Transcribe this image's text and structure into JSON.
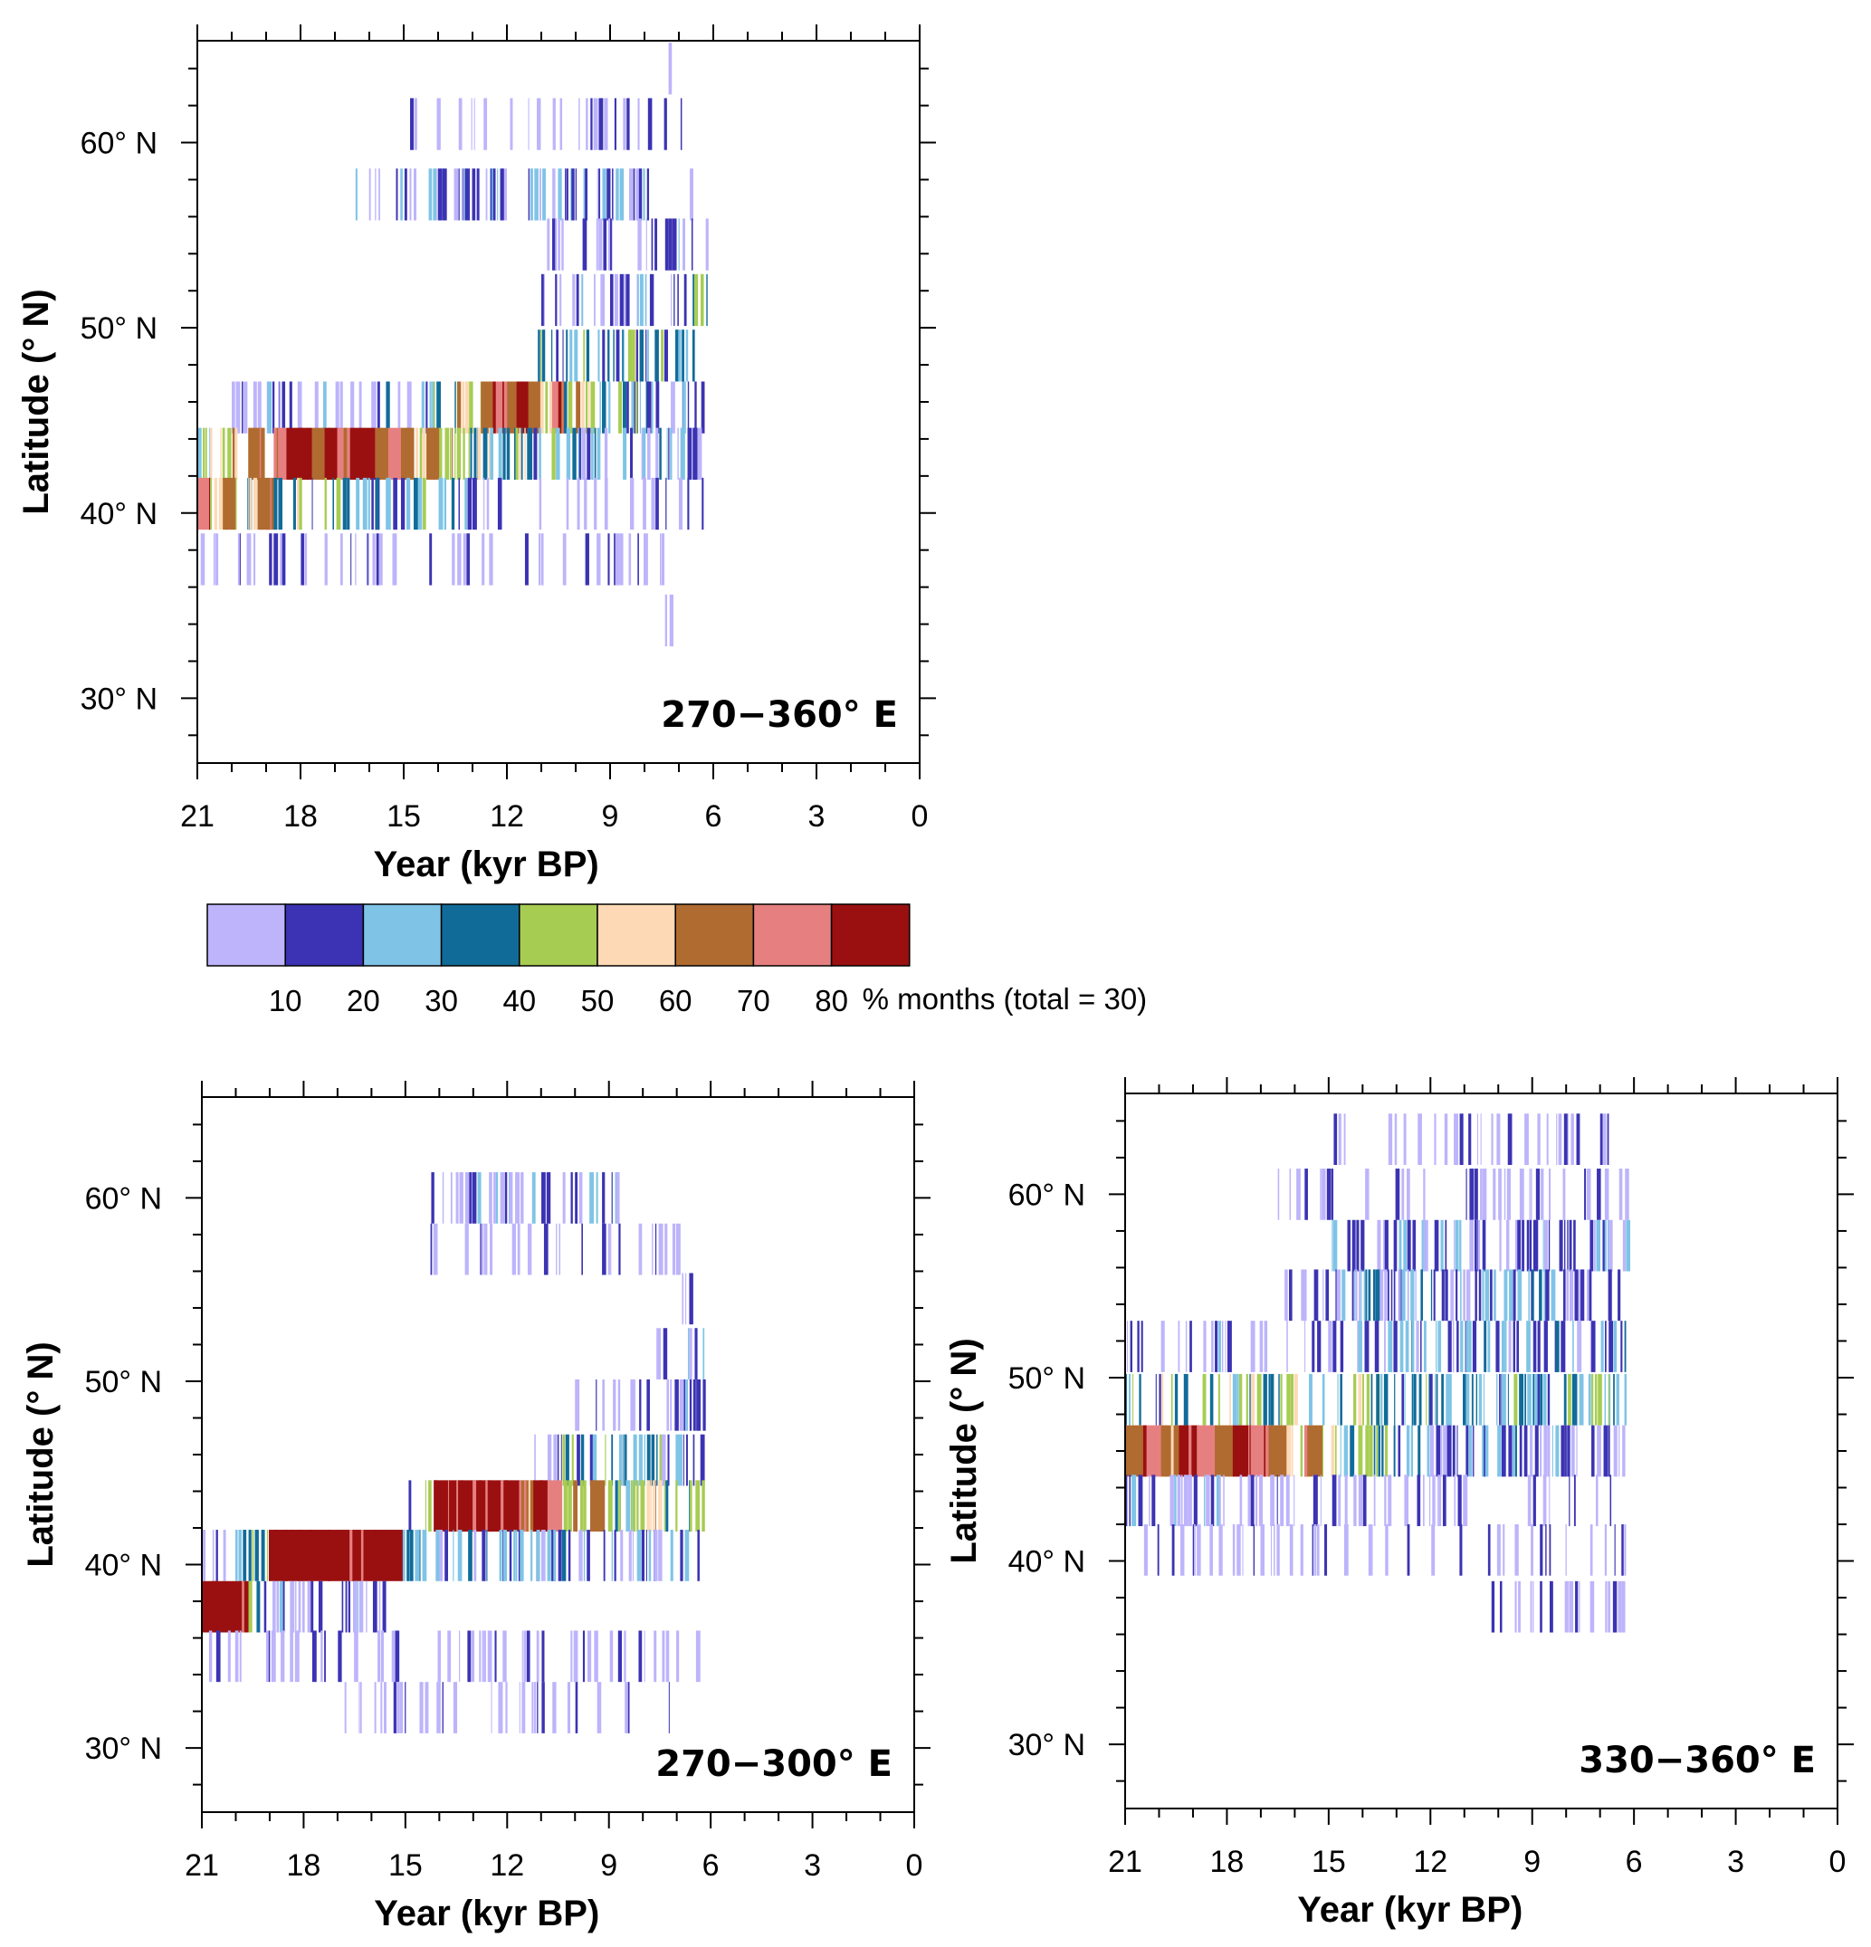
{
  "figure": {
    "colorbar": {
      "colors": [
        "#bdb4fb",
        "#3b33b3",
        "#7fc4e6",
        "#116b99",
        "#a7cc52",
        "#fdd9b5",
        "#b06b30",
        "#e68080",
        "#9a1010"
      ],
      "tick_labels": [
        "10",
        "20",
        "30",
        "40",
        "50",
        "60",
        "70",
        "80"
      ],
      "unit_label": "% months (total = 30)"
    }
  },
  "chart_data": [
    {
      "type": "heatmap",
      "title": "270−360° E",
      "xlabel": "Year (kyr BP)",
      "ylabel": "Latitude (° N)",
      "xlim": [
        21,
        0
      ],
      "ylim": [
        26.5,
        65.5
      ],
      "x_ticks": [
        "21",
        "18",
        "15",
        "12",
        "9",
        "6",
        "3",
        "0"
      ],
      "y_ticks": [
        "30° N",
        "40° N",
        "50° N",
        "60° N"
      ],
      "y_tick_values": [
        30,
        40,
        50,
        60
      ],
      "bands": [
        {
          "lat": 64.0,
          "x_from": 7.3,
          "x_to": 7.1,
          "levels": [
            0
          ]
        },
        {
          "lat": 61.0,
          "x_from": 15.0,
          "x_to": 6.9,
          "levels": [
            0,
            0,
            0,
            0,
            0,
            0,
            0,
            0,
            0,
            0
          ]
        },
        {
          "lat": 57.2,
          "x_from": 16.4,
          "x_to": 6.2,
          "levels": [
            1,
            0,
            0,
            1,
            0,
            1,
            1,
            1,
            1,
            1,
            1,
            0,
            1,
            1,
            0,
            1,
            1,
            0,
            1,
            1,
            0,
            1,
            0,
            1,
            0,
            0
          ]
        },
        {
          "lat": 54.5,
          "x_from": 11.0,
          "x_to": 6.2,
          "levels": [
            0,
            0,
            0,
            0,
            0,
            0,
            0,
            0,
            1,
            1,
            1,
            0
          ]
        },
        {
          "lat": 51.5,
          "x_from": 11.0,
          "x_to": 6.2,
          "levels": [
            0,
            0,
            1,
            0,
            0,
            1,
            0,
            2,
            0,
            1,
            1,
            3
          ]
        },
        {
          "lat": 48.5,
          "x_from": 11.1,
          "x_to": 6.2,
          "levels": [
            3,
            2,
            2,
            3,
            2,
            2,
            4,
            2,
            3,
            2,
            2,
            3
          ]
        },
        {
          "lat": 45.7,
          "x_from": 20.0,
          "x_to": 6.2,
          "levels": [
            0,
            1,
            0,
            1,
            0,
            0,
            0,
            1,
            0,
            0,
            0,
            0,
            1,
            2,
            1,
            3,
            2,
            4,
            3,
            5,
            4,
            6,
            7,
            6,
            8,
            6,
            5,
            7,
            4,
            5,
            4,
            3,
            4,
            2,
            3,
            2,
            2,
            1,
            2,
            1
          ]
        },
        {
          "lat": 43.2,
          "x_from": 21.0,
          "x_to": 6.2,
          "levels": [
            3,
            4,
            5,
            4,
            6,
            5,
            7,
            8,
            8,
            6,
            8,
            7,
            8,
            8,
            6,
            7,
            6,
            5,
            6,
            4,
            5,
            3,
            4,
            2,
            3,
            4,
            2,
            3,
            1,
            2,
            1,
            2,
            1,
            2,
            1,
            1,
            2,
            1,
            1,
            1
          ]
        },
        {
          "lat": 40.5,
          "x_from": 21.0,
          "x_to": 6.2,
          "levels": [
            7,
            5,
            6,
            4,
            5,
            6,
            3,
            4,
            5,
            2,
            3,
            4,
            2,
            1,
            3,
            2,
            1,
            3,
            1,
            2,
            0,
            1,
            0,
            0,
            0,
            0,
            0,
            0,
            0,
            0,
            0,
            0,
            0,
            0,
            0,
            0,
            0,
            0,
            0,
            0
          ]
        },
        {
          "lat": 37.5,
          "x_from": 21.0,
          "x_to": 6.2,
          "levels": [
            0,
            0,
            0,
            0,
            0,
            0,
            0,
            0,
            0,
            0,
            0,
            0
          ]
        },
        {
          "lat": 34.2,
          "x_from": 7.6,
          "x_to": 7.1,
          "levels": [
            0,
            0
          ]
        }
      ]
    },
    {
      "type": "heatmap",
      "title": "270−300° E",
      "xlabel": "Year (kyr BP)",
      "ylabel": "Latitude (° N)",
      "xlim": [
        21,
        0
      ],
      "ylim": [
        26.5,
        65.5
      ],
      "x_ticks": [
        "21",
        "18",
        "15",
        "12",
        "9",
        "6",
        "3",
        "0"
      ],
      "y_ticks": [
        "30° N",
        "40° N",
        "50° N",
        "60° N"
      ],
      "y_tick_values": [
        30,
        40,
        50,
        60
      ],
      "bands": [
        {
          "lat": 60.0,
          "x_from": 14.3,
          "x_to": 8.0,
          "levels": [
            0,
            0,
            1,
            1,
            0,
            1,
            1,
            2,
            1,
            1,
            1,
            0,
            1,
            1,
            0,
            0
          ]
        },
        {
          "lat": 57.2,
          "x_from": 14.5,
          "x_to": 6.2,
          "levels": [
            0,
            0,
            0,
            0,
            0,
            0,
            0,
            0
          ]
        },
        {
          "lat": 54.5,
          "x_from": 7.0,
          "x_to": 6.2,
          "levels": [
            0,
            0,
            0
          ]
        },
        {
          "lat": 51.5,
          "x_from": 7.6,
          "x_to": 6.2,
          "levels": [
            1,
            0,
            1,
            1
          ]
        },
        {
          "lat": 48.7,
          "x_from": 10.0,
          "x_to": 6.2,
          "levels": [
            0,
            0,
            0,
            0,
            1,
            0,
            1,
            1,
            1
          ]
        },
        {
          "lat": 45.7,
          "x_from": 11.2,
          "x_to": 6.2,
          "levels": [
            0,
            1,
            3,
            2,
            2,
            3,
            3,
            2,
            3,
            1,
            2,
            2
          ]
        },
        {
          "lat": 43.2,
          "x_from": 15.0,
          "x_to": 6.2,
          "levels": [
            0,
            4,
            8,
            8,
            8,
            8,
            8,
            8,
            6,
            8,
            7,
            5,
            4,
            6,
            4,
            3,
            4,
            5,
            3,
            4,
            3
          ]
        },
        {
          "lat": 40.5,
          "x_from": 21.0,
          "x_to": 6.2,
          "levels": [
            0,
            0,
            3,
            4,
            8,
            8,
            8,
            8,
            8,
            8,
            8,
            8,
            3,
            2,
            1,
            2,
            1,
            2,
            1,
            1,
            1,
            2,
            1,
            1,
            2,
            0,
            1,
            0,
            1,
            0
          ]
        },
        {
          "lat": 37.7,
          "x_from": 21.0,
          "x_to": 15.5,
          "levels": [
            8,
            8,
            8,
            4,
            1,
            1,
            0,
            1,
            0,
            1,
            1,
            0
          ]
        },
        {
          "lat": 35.0,
          "x_from": 21.0,
          "x_to": 6.2,
          "levels": [
            0,
            0,
            0,
            0,
            0,
            0,
            0,
            0,
            0,
            0,
            0,
            0
          ]
        },
        {
          "lat": 32.2,
          "x_from": 17.0,
          "x_to": 7.1,
          "levels": [
            0,
            0,
            0,
            0,
            0,
            0
          ]
        }
      ]
    },
    {
      "type": "heatmap",
      "title": "330−360° E",
      "xlabel": "Year (kyr BP)",
      "ylabel": "Latitude (° N)",
      "xlim": [
        21,
        0
      ],
      "ylim": [
        26.5,
        65.5
      ],
      "x_ticks": [
        "21",
        "18",
        "15",
        "12",
        "9",
        "6",
        "3",
        "0"
      ],
      "y_ticks": [
        "30° N",
        "40° N",
        "50° N",
        "60° N"
      ],
      "y_tick_values": [
        30,
        40,
        50,
        60
      ],
      "bands": [
        {
          "lat": 63.0,
          "x_from": 15.0,
          "x_to": 6.2,
          "levels": [
            0,
            0,
            0,
            0,
            0,
            0,
            0,
            0,
            0,
            0
          ]
        },
        {
          "lat": 60.0,
          "x_from": 16.5,
          "x_to": 6.2,
          "levels": [
            0,
            0,
            0,
            0,
            0,
            0,
            0,
            1,
            0,
            0,
            0,
            0,
            0
          ]
        },
        {
          "lat": 57.2,
          "x_from": 15.0,
          "x_to": 6.2,
          "levels": [
            1,
            1,
            0,
            1,
            1,
            0,
            1,
            1,
            1,
            0,
            1,
            1,
            1,
            0,
            1,
            1
          ]
        },
        {
          "lat": 54.5,
          "x_from": 16.3,
          "x_to": 6.2,
          "levels": [
            1,
            0,
            1,
            1,
            2,
            1,
            1,
            2,
            1,
            1,
            2,
            1,
            1,
            2,
            1,
            1,
            0,
            1
          ]
        },
        {
          "lat": 51.7,
          "x_from": 21.0,
          "x_to": 6.2,
          "levels": [
            0,
            0,
            0,
            0,
            0,
            1,
            0,
            0,
            0,
            0,
            1,
            0,
            0,
            1,
            1,
            2,
            1,
            2,
            1,
            2,
            2,
            1,
            2,
            1,
            2,
            1,
            1,
            2
          ]
        },
        {
          "lat": 48.8,
          "x_from": 21.0,
          "x_to": 6.2,
          "levels": [
            3,
            2,
            4,
            3,
            4,
            4,
            3,
            4,
            3,
            4,
            2,
            3,
            4,
            4,
            3,
            2,
            3,
            2,
            3,
            2,
            2,
            3,
            2,
            2,
            3,
            2,
            3,
            2
          ]
        },
        {
          "lat": 46.0,
          "x_from": 21.0,
          "x_to": 6.2,
          "levels": [
            6,
            7,
            6,
            8,
            7,
            6,
            8,
            7,
            6,
            5,
            6,
            4,
            3,
            4,
            3,
            2,
            3,
            1,
            2,
            2,
            1,
            2,
            1,
            1,
            1,
            0,
            1,
            1
          ]
        },
        {
          "lat": 43.3,
          "x_from": 21.0,
          "x_to": 6.2,
          "levels": [
            1,
            1,
            1,
            0,
            1,
            0,
            0,
            1,
            0,
            0,
            0,
            0,
            0,
            0,
            0,
            0
          ]
        },
        {
          "lat": 40.6,
          "x_from": 21.0,
          "x_to": 6.2,
          "levels": [
            0,
            0,
            0,
            0,
            0,
            0,
            0,
            0,
            0,
            0,
            0,
            0,
            0,
            0
          ]
        },
        {
          "lat": 37.5,
          "x_from": 10.2,
          "x_to": 6.2,
          "levels": [
            0,
            0,
            0,
            0,
            0,
            0,
            0
          ]
        }
      ]
    }
  ]
}
